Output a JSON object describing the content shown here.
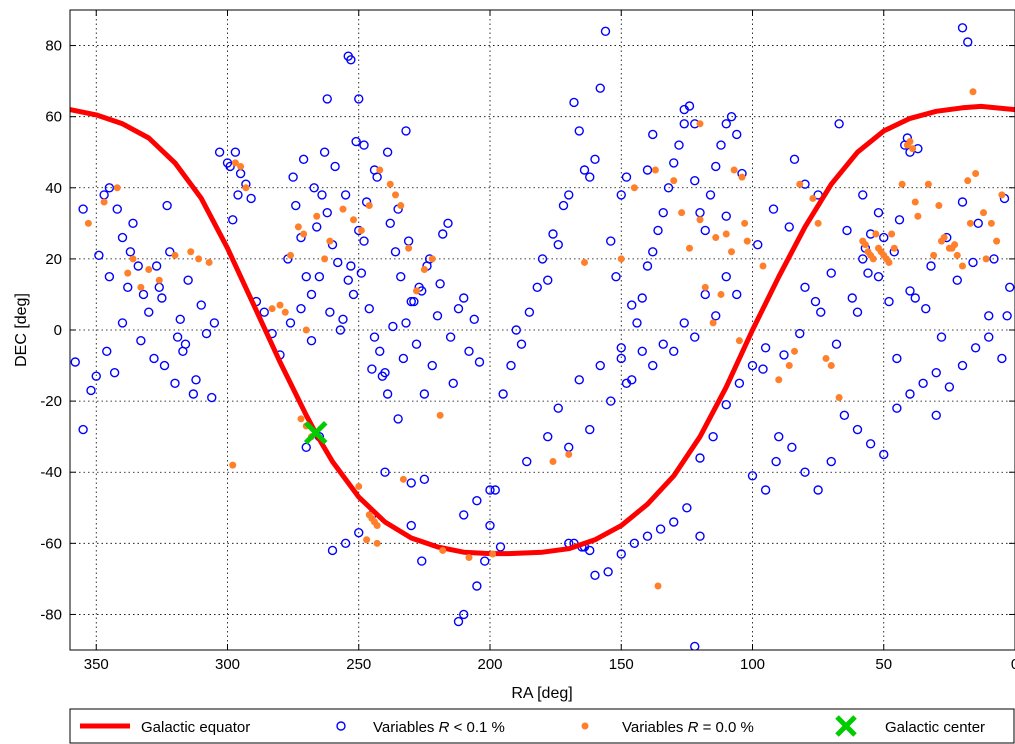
{
  "chart_data": {
    "type": "scatter",
    "title": "",
    "xlabel": "RA [deg]",
    "ylabel": "DEC [deg]",
    "xlim": [
      360,
      0
    ],
    "ylim": [
      -90,
      90
    ],
    "x_reversed": true,
    "grid": true,
    "x_ticks": [
      350,
      300,
      250,
      200,
      150,
      100,
      50,
      0
    ],
    "y_ticks": [
      -80,
      -60,
      -40,
      -20,
      0,
      20,
      40,
      60,
      80
    ],
    "legend_position": "bottom, outside plot",
    "series": [
      {
        "name": "Galactic equator",
        "kind": "curve",
        "color": "#ff0000",
        "x": [
          360,
          350,
          340,
          330,
          320,
          310,
          300,
          290,
          280,
          270,
          266.4,
          260,
          250,
          240,
          230,
          220,
          210,
          200,
          192.9,
          180,
          170,
          160,
          150,
          140,
          130,
          120,
          110,
          100,
          90,
          80,
          70,
          60,
          50,
          40,
          30,
          20,
          12.9,
          0
        ],
        "y": [
          62,
          60.5,
          58,
          54,
          47,
          37,
          23,
          7,
          -9,
          -24,
          -29,
          -37,
          -47,
          -54,
          -58.5,
          -61,
          -62.5,
          -62.9,
          -62.9,
          -62.5,
          -61.5,
          -59,
          -55,
          -49,
          -41,
          -30,
          -16,
          0,
          15,
          29,
          41,
          50,
          56,
          59.5,
          61.5,
          62.5,
          62.9,
          62
        ]
      },
      {
        "name": "Variables R < 0.1 %",
        "kind": "open-circle",
        "color": "#0000ff",
        "x": [
          358,
          349,
          352,
          355,
          345,
          347,
          340,
          343,
          338,
          336,
          333,
          330,
          328,
          327,
          325,
          322,
          320,
          318,
          317,
          315,
          313,
          310,
          308,
          306,
          345,
          342,
          337,
          332,
          324,
          316,
          340,
          334,
          326,
          319,
          312,
          355,
          350,
          346,
          323,
          305,
          299,
          297,
          295,
          293,
          291,
          303,
          300,
          296,
          298,
          289,
          286,
          283,
          280,
          277,
          274,
          272,
          270,
          268,
          266,
          264,
          262,
          260,
          258,
          256,
          254,
          252,
          250,
          248,
          246,
          244,
          242,
          240,
          238,
          236,
          234,
          232,
          230,
          228,
          226,
          224,
          222,
          220,
          218,
          216,
          214,
          212,
          210,
          208,
          206,
          204,
          275,
          271,
          267,
          263,
          259,
          255,
          251,
          247,
          243,
          239,
          235,
          231,
          227,
          223,
          219,
          215,
          276,
          272,
          268,
          265,
          261,
          257,
          253,
          249,
          245,
          241,
          237,
          233,
          229,
          225,
          270,
          265,
          260,
          255,
          250,
          245,
          240,
          235,
          230,
          254,
          253,
          250,
          244,
          232,
          248,
          262,
          239,
          226,
          225,
          210,
          212,
          205,
          202,
          200,
          198,
          195,
          192,
          190,
          188,
          185,
          182,
          180,
          178,
          176,
          174,
          172,
          170,
          168,
          166,
          164,
          162,
          160,
          158,
          156,
          154,
          152,
          150,
          148,
          146,
          144,
          142,
          140,
          138,
          136,
          134,
          132,
          130,
          128,
          126,
          124,
          122,
          120,
          118,
          116,
          114,
          112,
          110,
          108,
          106,
          104,
          186,
          174,
          166,
          158,
          150,
          142,
          134,
          126,
          118,
          110,
          178,
          170,
          162,
          154,
          146,
          138,
          130,
          122,
          114,
          106,
          165,
          150,
          145,
          140,
          135,
          130,
          125,
          120,
          115,
          110,
          105,
          100,
          95,
          90,
          85,
          80,
          75,
          70,
          65,
          60,
          55,
          50,
          45,
          40,
          35,
          30,
          25,
          20,
          15,
          10,
          5,
          2,
          98,
          92,
          86,
          80,
          74,
          68,
          62,
          56,
          50,
          44,
          38,
          32,
          26,
          20,
          14,
          8,
          3,
          96,
          88,
          82,
          76,
          70,
          64,
          58,
          52,
          46,
          40,
          34,
          28,
          22,
          16,
          10,
          4,
          155,
          122,
          20,
          18,
          37,
          67,
          160,
          120,
          95,
          91,
          100,
          75,
          80,
          84,
          110,
          200,
          205,
          210,
          230,
          196,
          162,
          164,
          168,
          170,
          122,
          126,
          138,
          140,
          148,
          150,
          40,
          41,
          42,
          55,
          57,
          58,
          52,
          48,
          60,
          45,
          30
        ],
        "y": [
          -9,
          21,
          -17,
          34,
          15,
          38,
          26,
          -12,
          12,
          30,
          -3,
          5,
          -8,
          18,
          9,
          22,
          -15,
          3,
          -6,
          14,
          -18,
          7,
          -1,
          -19,
          40,
          34,
          22,
          10,
          -10,
          -4,
          2,
          18,
          12,
          -2,
          -14,
          -28,
          -13,
          -6,
          35,
          2,
          46,
          50,
          44,
          41,
          37,
          50,
          47,
          38,
          31,
          8,
          5,
          -1,
          -7,
          20,
          35,
          26,
          15,
          10,
          29,
          38,
          33,
          24,
          19,
          3,
          14,
          10,
          28,
          25,
          6,
          -2,
          -6,
          -12,
          30,
          22,
          15,
          2,
          8,
          -4,
          11,
          18,
          -10,
          4,
          27,
          30,
          -15,
          6,
          9,
          -6,
          3,
          -9,
          43,
          48,
          40,
          50,
          46,
          38,
          53,
          36,
          43,
          50,
          34,
          25,
          12,
          20,
          13,
          -2,
          2,
          6,
          -3,
          15,
          5,
          0,
          18,
          16,
          -11,
          -13,
          1,
          -8,
          8,
          -18,
          -33,
          -30,
          -62,
          -60,
          -57,
          -52,
          -40,
          -25,
          -43,
          77,
          76,
          65,
          45,
          56,
          52,
          65,
          -18,
          -65,
          -42,
          -80,
          -82,
          -72,
          -65,
          -55,
          -45,
          -18,
          -10,
          0,
          -4,
          5,
          12,
          20,
          14,
          27,
          24,
          35,
          38,
          64,
          56,
          45,
          43,
          48,
          68,
          84,
          25,
          15,
          -5,
          -15,
          7,
          2,
          9,
          18,
          22,
          28,
          33,
          40,
          47,
          52,
          58,
          63,
          42,
          33,
          28,
          38,
          46,
          52,
          58,
          60,
          55,
          44,
          -37,
          -22,
          -14,
          -10,
          -8,
          -6,
          -4,
          2,
          10,
          15,
          -30,
          -33,
          -28,
          -20,
          -14,
          -10,
          -6,
          -2,
          4,
          10,
          -61,
          -63,
          -60,
          -58,
          -56,
          -54,
          -50,
          -36,
          -30,
          -21,
          -15,
          -10,
          -5,
          -30,
          -33,
          -40,
          -45,
          -37,
          -24,
          -28,
          -32,
          -35,
          -22,
          -18,
          -15,
          -24,
          -16,
          -10,
          -5,
          -2,
          -8,
          12,
          24,
          34,
          29,
          12,
          5,
          -4,
          9,
          16,
          26,
          31,
          9,
          18,
          26,
          36,
          30,
          20,
          4,
          -11,
          -7,
          -1,
          8,
          16,
          28,
          38,
          33,
          22,
          11,
          6,
          -2,
          14,
          19,
          4,
          37,
          -68,
          -89,
          85,
          81,
          51,
          58,
          -69,
          -58,
          -45,
          -37,
          -41,
          38,
          41,
          48,
          32,
          -45,
          -48,
          -52,
          -55,
          -61,
          -62,
          -61,
          -60,
          -60,
          58,
          62,
          55,
          45,
          43,
          38,
          50,
          54,
          52,
          27,
          23,
          20,
          15,
          8,
          5,
          -8,
          -12
        ]
      },
      {
        "name": "Variables R = 0.0 %",
        "kind": "filled-dot",
        "color": "#ff7f2a",
        "x": [
          353,
          347,
          336,
          330,
          326,
          320,
          314,
          342,
          338,
          333,
          311,
          307,
          297,
          295,
          293,
          283,
          280,
          276,
          273,
          271,
          266,
          263,
          261,
          256,
          252,
          249,
          246,
          242,
          238,
          236,
          234,
          231,
          228,
          225,
          222,
          219,
          272,
          270,
          268,
          246,
          245,
          244,
          243,
          278,
          298,
          270,
          250,
          247,
          243,
          233,
          218,
          208,
          199,
          170,
          176,
          164,
          150,
          145,
          137,
          130,
          127,
          124,
          120,
          114,
          110,
          108,
          107,
          104,
          103,
          102,
          112,
          115,
          118,
          120,
          105,
          96,
          90,
          86,
          84,
          82,
          77,
          75,
          72,
          70,
          67,
          58,
          57,
          56,
          55,
          54,
          53,
          52,
          51,
          50,
          49,
          48,
          47,
          46,
          41,
          40,
          39,
          38,
          37,
          33,
          28,
          25,
          20,
          18,
          15,
          12,
          9,
          7,
          5,
          43,
          31,
          23,
          17,
          11,
          29,
          27,
          24,
          22,
          136,
          16
        ],
        "y": [
          30,
          36,
          20,
          17,
          14,
          21,
          22,
          40,
          16,
          12,
          20,
          19,
          47,
          46,
          40,
          6,
          7,
          21,
          29,
          27,
          32,
          20,
          25,
          34,
          31,
          28,
          35,
          45,
          41,
          38,
          35,
          23,
          11,
          17,
          20,
          -24,
          -25,
          -27,
          -30,
          -52,
          -53,
          -54,
          -55,
          5,
          -38,
          0,
          -44,
          -59,
          -60,
          -42,
          -62,
          -64,
          -63,
          -35,
          -37,
          19,
          20,
          40,
          45,
          42,
          33,
          23,
          31,
          26,
          27,
          22,
          45,
          43,
          30,
          25,
          10,
          2,
          12,
          58,
          -3,
          18,
          -14,
          -10,
          -6,
          41,
          37,
          30,
          -8,
          -10,
          -19,
          25,
          24,
          22,
          21,
          20,
          27,
          23,
          22,
          21,
          20,
          19,
          27,
          23,
          52,
          53,
          51,
          36,
          32,
          41,
          25,
          23,
          18,
          42,
          44,
          33,
          30,
          25,
          38,
          41,
          21,
          24,
          30,
          20,
          35,
          26,
          23,
          21,
          -72,
          67
        ]
      },
      {
        "name": "Galactic center",
        "kind": "x-marker",
        "color": "#00cc00",
        "x": [
          266.4
        ],
        "y": [
          -28.9
        ]
      }
    ]
  }
}
